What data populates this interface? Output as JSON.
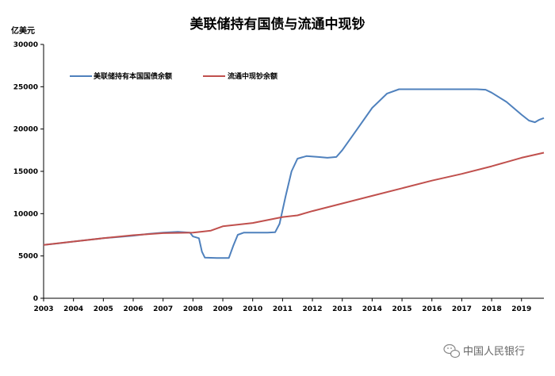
{
  "chart_data": {
    "type": "line",
    "title": "美联储持有国债与流通中现钞",
    "unit_label": "亿美元",
    "ylim": [
      0,
      30000
    ],
    "yticks": [
      0,
      5000,
      10000,
      15000,
      20000,
      25000,
      30000
    ],
    "xlim": [
      2003,
      2019.75
    ],
    "xticks": [
      "2003",
      "2004",
      "2005",
      "2006",
      "2007",
      "2008",
      "2009",
      "2010",
      "2011",
      "2012",
      "2013",
      "2014",
      "2015",
      "2016",
      "2017",
      "2018",
      "2019"
    ],
    "legend_position": "top-left",
    "grid": false,
    "series": [
      {
        "name": "美联储持有本国国债余额",
        "color": "#4f81bd",
        "points": [
          [
            2003.0,
            6300
          ],
          [
            2003.5,
            6500
          ],
          [
            2004.0,
            6700
          ],
          [
            2004.5,
            6900
          ],
          [
            2005.0,
            7100
          ],
          [
            2005.5,
            7250
          ],
          [
            2006.0,
            7400
          ],
          [
            2006.5,
            7600
          ],
          [
            2007.0,
            7750
          ],
          [
            2007.5,
            7850
          ],
          [
            2007.9,
            7750
          ],
          [
            2008.0,
            7300
          ],
          [
            2008.2,
            7100
          ],
          [
            2008.3,
            5500
          ],
          [
            2008.4,
            4800
          ],
          [
            2008.8,
            4750
          ],
          [
            2009.2,
            4750
          ],
          [
            2009.35,
            6200
          ],
          [
            2009.5,
            7500
          ],
          [
            2009.7,
            7750
          ],
          [
            2010.5,
            7750
          ],
          [
            2010.75,
            7800
          ],
          [
            2010.9,
            8800
          ],
          [
            2011.1,
            12000
          ],
          [
            2011.3,
            15000
          ],
          [
            2011.5,
            16500
          ],
          [
            2011.8,
            16800
          ],
          [
            2012.2,
            16700
          ],
          [
            2012.5,
            16600
          ],
          [
            2012.8,
            16700
          ],
          [
            2013.0,
            17500
          ],
          [
            2013.5,
            20000
          ],
          [
            2014.0,
            22500
          ],
          [
            2014.5,
            24200
          ],
          [
            2014.9,
            24700
          ],
          [
            2015.5,
            24700
          ],
          [
            2016.5,
            24700
          ],
          [
            2017.5,
            24700
          ],
          [
            2017.8,
            24650
          ],
          [
            2018.0,
            24300
          ],
          [
            2018.5,
            23200
          ],
          [
            2019.0,
            21700
          ],
          [
            2019.25,
            21000
          ],
          [
            2019.45,
            20800
          ],
          [
            2019.6,
            21100
          ],
          [
            2019.75,
            21300
          ]
        ]
      },
      {
        "name": "流通中现钞余额",
        "color": "#c0504d",
        "points": [
          [
            2003.0,
            6300
          ],
          [
            2004.0,
            6700
          ],
          [
            2005.0,
            7100
          ],
          [
            2006.0,
            7450
          ],
          [
            2007.0,
            7700
          ],
          [
            2008.0,
            7750
          ],
          [
            2008.6,
            8000
          ],
          [
            2009.0,
            8500
          ],
          [
            2010.0,
            8900
          ],
          [
            2011.0,
            9600
          ],
          [
            2011.5,
            9800
          ],
          [
            2012.0,
            10300
          ],
          [
            2013.0,
            11200
          ],
          [
            2014.0,
            12100
          ],
          [
            2015.0,
            13000
          ],
          [
            2016.0,
            13900
          ],
          [
            2017.0,
            14700
          ],
          [
            2018.0,
            15600
          ],
          [
            2019.0,
            16600
          ],
          [
            2019.75,
            17200
          ]
        ]
      }
    ]
  },
  "watermark": {
    "icon": "wechat-icon",
    "text": "中国人民银行"
  }
}
